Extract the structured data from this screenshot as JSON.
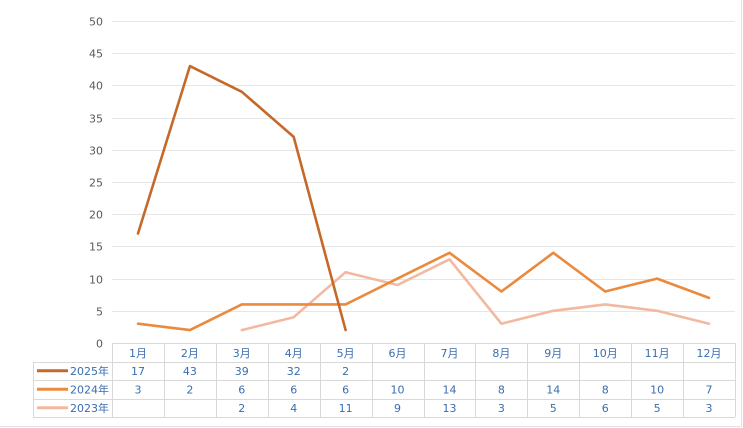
{
  "chart_data": {
    "type": "line",
    "title": "",
    "xlabel": "",
    "ylabel": "",
    "ylim": [
      0,
      50
    ],
    "yticks": [
      0,
      5,
      10,
      15,
      20,
      25,
      30,
      35,
      40,
      45,
      50
    ],
    "grid": true,
    "legend": "data-table-left",
    "categories": [
      "1月",
      "2月",
      "3月",
      "4月",
      "5月",
      "6月",
      "7月",
      "8月",
      "9月",
      "10月",
      "11月",
      "12月"
    ],
    "series": [
      {
        "name": "2025年",
        "color": "#C5692A",
        "values": [
          17,
          43,
          39,
          32,
          2,
          null,
          null,
          null,
          null,
          null,
          null,
          null
        ]
      },
      {
        "name": "2024年",
        "color": "#EA8A3E",
        "values": [
          3,
          2,
          6,
          6,
          6,
          10,
          14,
          8,
          14,
          8,
          10,
          7
        ]
      },
      {
        "name": "2023年",
        "color": "#F2B9A0",
        "values": [
          null,
          null,
          2,
          4,
          11,
          9,
          13,
          3,
          5,
          6,
          5,
          3
        ]
      }
    ]
  }
}
